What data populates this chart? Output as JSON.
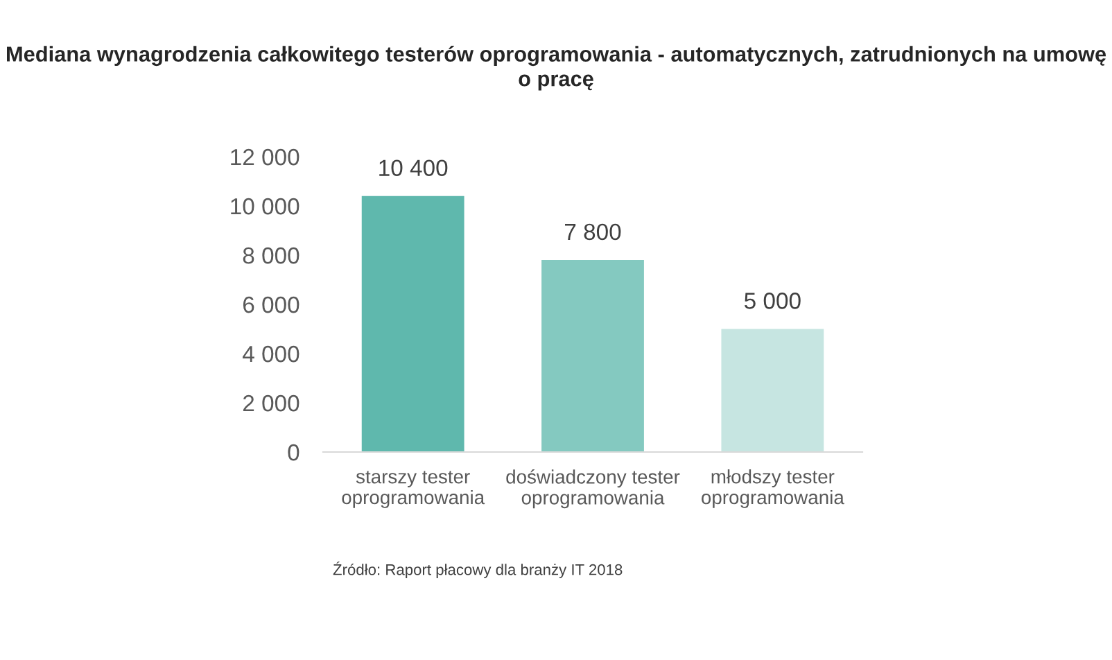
{
  "chart_data": {
    "type": "bar",
    "title": "Mediana wynagrodzenia całkowitego testerów oprogramowania - automatycznych, zatrudnionych na umowę o pracę",
    "categories": [
      "starszy tester\noprogramowania",
      "doświadczony tester\noprogramowania",
      "młodszy tester\noprogramowania"
    ],
    "values": [
      10400,
      7800,
      5000
    ],
    "value_labels": [
      "10 400",
      "7 800",
      "5 000"
    ],
    "colors": [
      "#5fb8ad",
      "#84c9c0",
      "#c6e5e1"
    ],
    "ylim": [
      0,
      12000
    ],
    "yticks": [
      0,
      {
        "value": 2000,
        "label": "2 000"
      },
      {
        "value": 4000,
        "label": "4 000"
      },
      {
        "value": 6000,
        "label": "6 000"
      },
      {
        "value": 8000,
        "label": "8 000"
      },
      {
        "value": 10000,
        "label": "10 000"
      },
      {
        "value": 12000,
        "label": "12 000"
      }
    ],
    "annotations": [
      "Źródło: Raport płacowy dla branży IT 2018"
    ]
  }
}
